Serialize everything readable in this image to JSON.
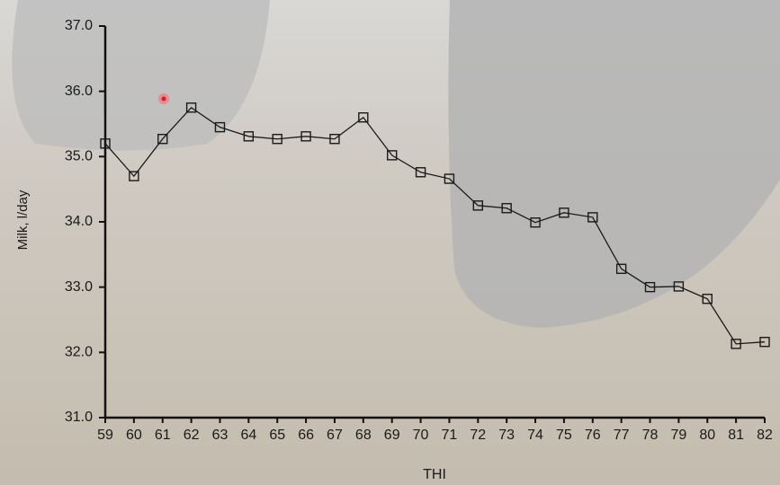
{
  "chart_data": {
    "type": "line",
    "x": [
      59,
      60,
      61,
      62,
      63,
      64,
      65,
      66,
      67,
      68,
      69,
      70,
      71,
      72,
      73,
      74,
      75,
      76,
      77,
      78,
      79,
      80,
      81,
      82
    ],
    "series": [
      {
        "name": "Milk",
        "color": "#1a1a1a",
        "values": [
          35.2,
          34.7,
          35.27,
          35.75,
          35.45,
          35.31,
          35.27,
          35.31,
          35.27,
          35.6,
          35.02,
          34.76,
          34.66,
          34.25,
          34.21,
          33.99,
          34.14,
          34.07,
          33.28,
          33.0,
          33.01,
          32.82,
          32.13,
          32.16
        ]
      }
    ],
    "xlim": [
      59,
      82
    ],
    "xticks": [
      59,
      60,
      61,
      62,
      63,
      64,
      65,
      66,
      67,
      68,
      69,
      70,
      71,
      72,
      73,
      74,
      75,
      76,
      77,
      78,
      79,
      80,
      81,
      82
    ],
    "ylim": [
      31,
      37
    ],
    "yticks": [
      {
        "value": 31,
        "label": "31.0"
      },
      {
        "value": 32,
        "label": "32.0"
      },
      {
        "value": 33,
        "label": "33.0"
      },
      {
        "value": 34,
        "label": "34.0"
      },
      {
        "value": 35,
        "label": "35.0"
      },
      {
        "value": 36,
        "label": "36.0"
      },
      {
        "value": 37,
        "label": "37.0"
      }
    ],
    "xlabel": "THI",
    "ylabel": "Milk, l/day",
    "marker": "square"
  }
}
